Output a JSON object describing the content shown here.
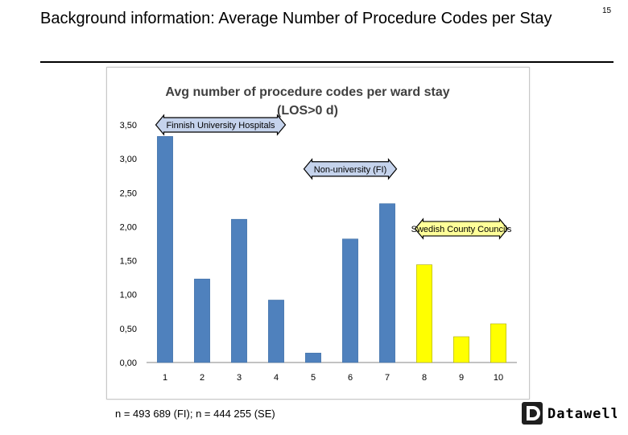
{
  "slide": {
    "title": "Background information: Average Number of Procedure Codes per Stay",
    "page_number": "15",
    "footnote": "n = 493 689 (FI); n = 444 255 (SE)",
    "logo_text": "Datawell"
  },
  "chart_data": {
    "type": "bar",
    "title_line1": "Avg number of procedure codes per ward stay",
    "title_line2": "(LOS>0 d)",
    "categories": [
      "1",
      "2",
      "3",
      "4",
      "5",
      "6",
      "7",
      "8",
      "9",
      "10"
    ],
    "values": [
      3.33,
      1.23,
      2.11,
      0.92,
      0.14,
      1.82,
      2.34,
      1.44,
      0.38,
      0.57
    ],
    "bar_colors": [
      "#4f81bd",
      "#4f81bd",
      "#4f81bd",
      "#4f81bd",
      "#4f81bd",
      "#4f81bd",
      "#4f81bd",
      "#ffff00",
      "#ffff00",
      "#ffff00"
    ],
    "ylim": [
      0,
      3.5
    ],
    "yticks": [
      "0,00",
      "0,50",
      "1,00",
      "1,50",
      "2,00",
      "2,50",
      "3,00",
      "3,50"
    ],
    "grid": false,
    "annotations": [
      {
        "label": "Finnish University Hospitals",
        "fill": "#c5d3ec",
        "from_category": 1,
        "to_category": 4,
        "y": 3.5
      },
      {
        "label": "Non-university (FI)",
        "fill": "#c5d3ec",
        "from_category": 5,
        "to_category": 7,
        "y": 2.85
      },
      {
        "label": "Swedish County Councils",
        "fill": "#ffff99",
        "from_category": 8,
        "to_category": 10,
        "y": 1.97
      }
    ]
  }
}
